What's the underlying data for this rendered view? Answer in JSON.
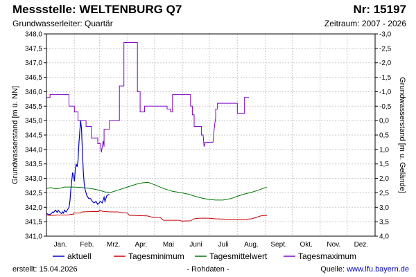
{
  "header": {
    "title": "Messstelle: WELTENBURG Q7",
    "nr": "Nr: 15197",
    "aquifer": "Grundwasserleiter: Quartär",
    "period": "Zeitraum: 2007 - 2026"
  },
  "footer": {
    "created": "erstellt:  15.04.2026",
    "note": "- Rohdaten -",
    "source_label": "Quelle: ",
    "source_link": "www.lfu.bayern.de"
  },
  "colors": {
    "aktuell": "#0000cc",
    "min": "#cc0000",
    "mean": "#007700",
    "max": "#7f00cc",
    "grid": "#c8c8c8"
  },
  "chart_data": {
    "type": "line",
    "ylabel_left": "Grundwasserstand [m ü. NN]",
    "ylabel_right": "Grundwasserstand [m u. Gelände]",
    "ylim_left": [
      341.0,
      348.0
    ],
    "ylim_right": [
      -3.0,
      4.0
    ],
    "yticks_left": [
      "341,0",
      "341,5",
      "342,0",
      "342,5",
      "343,0",
      "343,5",
      "344,0",
      "344,5",
      "345,0",
      "345,5",
      "346,0",
      "346,5",
      "347,0",
      "347,5",
      "348,0"
    ],
    "yticks_right": [
      "-3,0",
      "-2,5",
      "-2,0",
      "-1,5",
      "-1,0",
      "-0,5",
      "0,0",
      "0,5",
      "1,0",
      "1,5",
      "2,0",
      "2,5",
      "3,0",
      "3,5",
      "4,0"
    ],
    "xlim_days": [
      0,
      365
    ],
    "month_labels": [
      "Jan.",
      "Feb.",
      "Mrz.",
      "Apr.",
      "Mai",
      "Juni",
      "Juli",
      "Aug.",
      "Sept.",
      "Okt.",
      "Nov.",
      "Dez."
    ],
    "legend": [
      "aktuell",
      "Tagesminimum",
      "Tagesmittelwert",
      "Tagesmaximum"
    ],
    "series": [
      {
        "name": "Tagesmaximum",
        "points": [
          [
            0,
            345.8
          ],
          [
            4,
            345.8
          ],
          [
            4,
            345.9
          ],
          [
            25,
            345.9
          ],
          [
            25,
            345.5
          ],
          [
            31,
            345.5
          ],
          [
            31,
            345.3
          ],
          [
            35,
            345.3
          ],
          [
            35,
            345.0
          ],
          [
            44,
            345.0
          ],
          [
            44,
            344.8
          ],
          [
            50,
            344.8
          ],
          [
            50,
            344.4
          ],
          [
            57,
            344.4
          ],
          [
            57,
            344.2
          ],
          [
            60,
            344.2
          ],
          [
            61,
            343.9
          ],
          [
            62,
            344.1
          ],
          [
            63,
            344.3
          ],
          [
            64,
            344.1
          ],
          [
            64,
            344.7
          ],
          [
            70,
            344.7
          ],
          [
            70,
            345.0
          ],
          [
            81,
            345.0
          ],
          [
            81,
            346.2
          ],
          [
            86,
            346.2
          ],
          [
            86,
            347.7
          ],
          [
            101,
            347.7
          ],
          [
            101,
            346.0
          ],
          [
            104,
            346.0
          ],
          [
            104,
            345.3
          ],
          [
            109,
            345.3
          ],
          [
            109,
            345.5
          ],
          [
            134,
            345.5
          ],
          [
            134,
            345.4
          ],
          [
            138,
            345.4
          ],
          [
            138,
            345.3
          ],
          [
            140,
            345.3
          ],
          [
            140,
            345.9
          ],
          [
            160,
            345.9
          ],
          [
            160,
            345.5
          ],
          [
            162,
            345.5
          ],
          [
            162,
            345.2
          ],
          [
            164,
            345.2
          ],
          [
            164,
            344.8
          ],
          [
            172,
            344.8
          ],
          [
            172,
            344.5
          ],
          [
            174,
            344.5
          ],
          [
            175,
            344.1
          ],
          [
            176,
            344.2
          ],
          [
            176,
            344.25
          ],
          [
            185,
            344.25
          ],
          [
            186,
            344.6
          ],
          [
            187,
            344.9
          ],
          [
            188,
            345.1
          ],
          [
            188,
            345.4
          ],
          [
            190,
            345.4
          ],
          [
            190,
            345.6
          ],
          [
            212,
            345.6
          ],
          [
            212,
            345.25
          ],
          [
            220,
            345.25
          ],
          [
            220,
            345.8
          ],
          [
            225,
            345.8
          ]
        ]
      },
      {
        "name": "Tagesmittelwert",
        "points": [
          [
            0,
            342.65
          ],
          [
            5,
            342.68
          ],
          [
            10,
            342.64
          ],
          [
            15,
            342.66
          ],
          [
            20,
            342.7
          ],
          [
            30,
            342.7
          ],
          [
            40,
            342.68
          ],
          [
            50,
            342.65
          ],
          [
            60,
            342.58
          ],
          [
            65,
            342.53
          ],
          [
            72,
            342.52
          ],
          [
            80,
            342.6
          ],
          [
            90,
            342.7
          ],
          [
            100,
            342.8
          ],
          [
            108,
            342.85
          ],
          [
            113,
            342.86
          ],
          [
            120,
            342.78
          ],
          [
            130,
            342.65
          ],
          [
            140,
            342.55
          ],
          [
            150,
            342.5
          ],
          [
            158,
            342.45
          ],
          [
            165,
            342.38
          ],
          [
            172,
            342.32
          ],
          [
            180,
            342.27
          ],
          [
            188,
            342.25
          ],
          [
            196,
            342.25
          ],
          [
            205,
            342.3
          ],
          [
            212,
            342.38
          ],
          [
            220,
            342.46
          ],
          [
            228,
            342.52
          ],
          [
            236,
            342.6
          ],
          [
            242,
            342.67
          ],
          [
            245,
            342.68
          ]
        ]
      },
      {
        "name": "Tagesminimum",
        "points": [
          [
            0,
            341.75
          ],
          [
            2,
            341.72
          ],
          [
            8,
            341.72
          ],
          [
            12,
            341.73
          ],
          [
            24,
            341.73
          ],
          [
            26,
            341.75
          ],
          [
            30,
            341.76
          ],
          [
            30,
            341.8
          ],
          [
            38,
            341.8
          ],
          [
            40,
            341.84
          ],
          [
            50,
            341.85
          ],
          [
            58,
            341.85
          ],
          [
            59,
            341.9
          ],
          [
            60,
            341.9
          ],
          [
            62,
            341.86
          ],
          [
            70,
            341.84
          ],
          [
            80,
            341.84
          ],
          [
            81,
            341.82
          ],
          [
            90,
            341.8
          ],
          [
            92,
            341.72
          ],
          [
            112,
            341.7
          ],
          [
            118,
            341.65
          ],
          [
            126,
            341.65
          ],
          [
            130,
            341.55
          ],
          [
            148,
            341.55
          ],
          [
            150,
            341.52
          ],
          [
            160,
            341.53
          ],
          [
            164,
            341.6
          ],
          [
            170,
            341.62
          ],
          [
            180,
            341.62
          ],
          [
            188,
            341.6
          ],
          [
            205,
            341.58
          ],
          [
            220,
            341.58
          ],
          [
            228,
            341.6
          ],
          [
            235,
            341.67
          ],
          [
            238,
            341.7
          ],
          [
            245,
            341.72
          ]
        ]
      },
      {
        "name": "aktuell",
        "points": [
          [
            0,
            341.78
          ],
          [
            2,
            341.76
          ],
          [
            4,
            341.75
          ],
          [
            6,
            341.8
          ],
          [
            7,
            341.84
          ],
          [
            8,
            341.82
          ],
          [
            9,
            341.86
          ],
          [
            10,
            341.9
          ],
          [
            11,
            341.86
          ],
          [
            12,
            341.82
          ],
          [
            13,
            341.9
          ],
          [
            14,
            341.86
          ],
          [
            15,
            341.82
          ],
          [
            16,
            341.8
          ],
          [
            17,
            341.78
          ],
          [
            18,
            341.84
          ],
          [
            19,
            341.8
          ],
          [
            20,
            341.9
          ],
          [
            21,
            341.86
          ],
          [
            22,
            341.84
          ],
          [
            23,
            341.9
          ],
          [
            24,
            341.95
          ],
          [
            25,
            342.0
          ],
          [
            26,
            342.2
          ],
          [
            27,
            342.6
          ],
          [
            28,
            342.9
          ],
          [
            29,
            343.2
          ],
          [
            30,
            343.1
          ],
          [
            31,
            342.9
          ],
          [
            32,
            343.3
          ],
          [
            33,
            343.5
          ],
          [
            34,
            343.4
          ],
          [
            35,
            343.6
          ],
          [
            36,
            344.2
          ],
          [
            37,
            344.6
          ],
          [
            38,
            345.0
          ],
          [
            39,
            344.7
          ],
          [
            40,
            343.9
          ],
          [
            41,
            343.2
          ],
          [
            42,
            342.8
          ],
          [
            43,
            342.6
          ],
          [
            45,
            342.4
          ],
          [
            47,
            342.3
          ],
          [
            49,
            342.3
          ],
          [
            51,
            342.2
          ],
          [
            53,
            342.15
          ],
          [
            55,
            342.2
          ],
          [
            57,
            342.1
          ],
          [
            60,
            342.2
          ],
          [
            62,
            342.15
          ],
          [
            63,
            342.25
          ],
          [
            64,
            342.35
          ],
          [
            65,
            342.2
          ],
          [
            66,
            342.3
          ],
          [
            67,
            342.4
          ],
          [
            68,
            342.42
          ],
          [
            70,
            342.45
          ]
        ]
      }
    ]
  }
}
